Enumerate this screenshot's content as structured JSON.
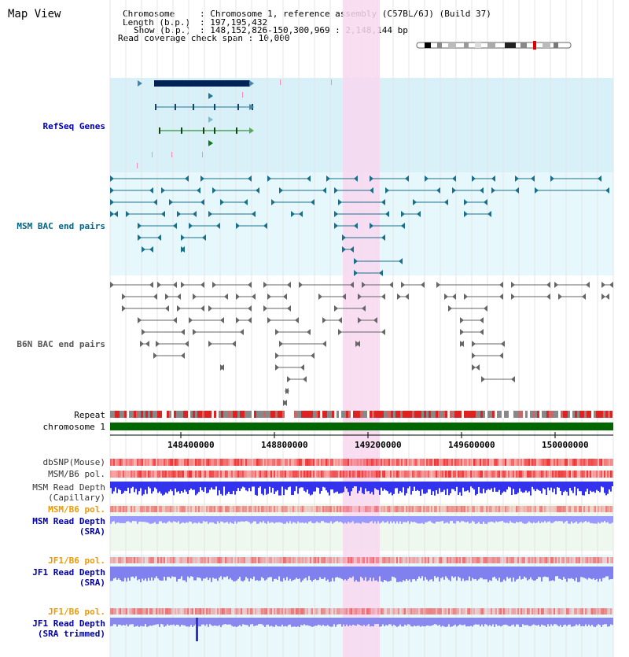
{
  "title": "Map View",
  "info": {
    "chromosome_key": "Chromosome",
    "chromosome_val": ": Chromosome 1, reference assembly (C57BL/6J) (Build 37)",
    "length_key": "Length (b.p.)",
    "length_val": ": 197,195,432",
    "show_key": "Show (b.p.)",
    "show_val": ": 148,152,826-150,300,969 : 2,148,144 bp",
    "coverage": "Read coverage check span : 10,000"
  },
  "tracks": {
    "refseq": "RefSeq Genes",
    "msm_bac": "MSM BAC end pairs",
    "b6n_bac": "B6N BAC end pairs",
    "repeat": "Repeat",
    "chromosome": "chromosome 1",
    "dbsnp": "dbSNP(Mouse)",
    "msm_b6_pol": "MSM/B6 pol.",
    "msm_depth_cap_1": "MSM Read Depth",
    "msm_depth_cap_2": "(Capillary)",
    "msm_b6_pol_2": "MSM/B6 pol.",
    "msm_depth_sra_1": "MSM Read Depth",
    "msm_depth_sra_2": "(SRA)",
    "jf1_b6_pol": "JF1/B6 pol.",
    "jf1_depth_1": "JF1 Read Depth",
    "jf1_depth_2": "(SRA)",
    "jf1_b6_pol_2": "JF1/B6 pol.",
    "jf1_trim_1": "JF1 Read Depth",
    "jf1_trim_2": "(SRA trimmed)"
  },
  "axis_ticks": [
    "148400000",
    "148800000",
    "149200000",
    "149600000",
    "150000000"
  ],
  "colors": {
    "refseq_bg": "#d8f0f8",
    "bac_bg": "#e6f8fb",
    "highlight": "#f8d8f0",
    "chrom_green": "#006600",
    "depth_blue": "#3333ee",
    "depth_lavender": "#9999ff",
    "pol_red": "#ee3333"
  }
}
